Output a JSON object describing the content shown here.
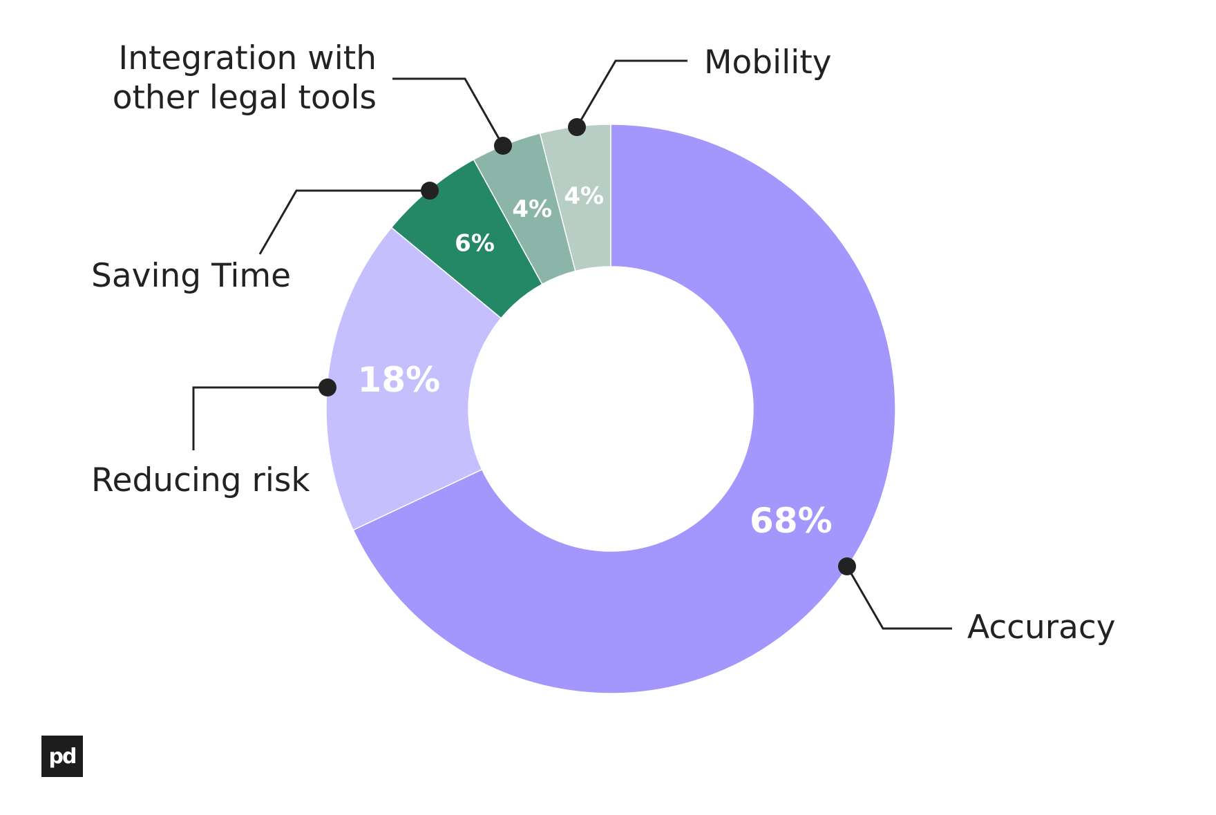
{
  "chart_data": {
    "type": "pie",
    "categories": [
      "Accuracy",
      "Reducing risk",
      "Saving Time",
      "Integration with other legal tools",
      "Mobility"
    ],
    "values": [
      68,
      18,
      6,
      4,
      4
    ],
    "value_labels": [
      "68%",
      "18%",
      "6%",
      "4%",
      "4%"
    ],
    "colors": [
      "#a396fd",
      "#c5bffe",
      "#248766",
      "#8bb5a8",
      "#b8cec5"
    ],
    "donut": true
  },
  "logo": "pd"
}
